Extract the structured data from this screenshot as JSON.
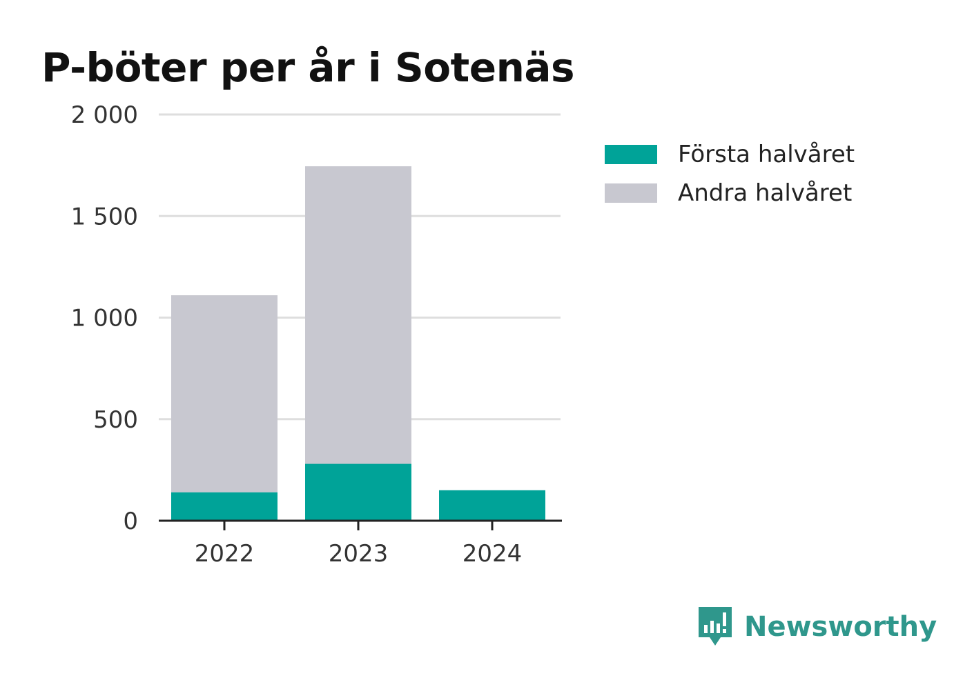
{
  "chart_data": {
    "type": "bar",
    "stacked": true,
    "title": "P-böter per år i Sotenäs",
    "categories": [
      "2022",
      "2023",
      "2024"
    ],
    "series": [
      {
        "name": "Första halvåret",
        "values": [
          140,
          280,
          150
        ],
        "color": "#00a398"
      },
      {
        "name": "Andra halvåret",
        "values": [
          970,
          1465,
          0
        ],
        "color": "#c8c8d0"
      }
    ],
    "ylim": [
      0,
      2000
    ],
    "yticks": [
      0,
      500,
      1000,
      1500,
      2000
    ],
    "ytick_labels": [
      "0",
      "500",
      "1 000",
      "1 500",
      "2 000"
    ],
    "xlabel": "",
    "ylabel": "",
    "grid": true,
    "legend_position": "right"
  },
  "brand": {
    "name": "Newsworthy",
    "color": "#2f978c",
    "icon": "newsworthy-logo-icon"
  },
  "colors": {
    "gridline": "#dedede",
    "axis": "#222222"
  }
}
